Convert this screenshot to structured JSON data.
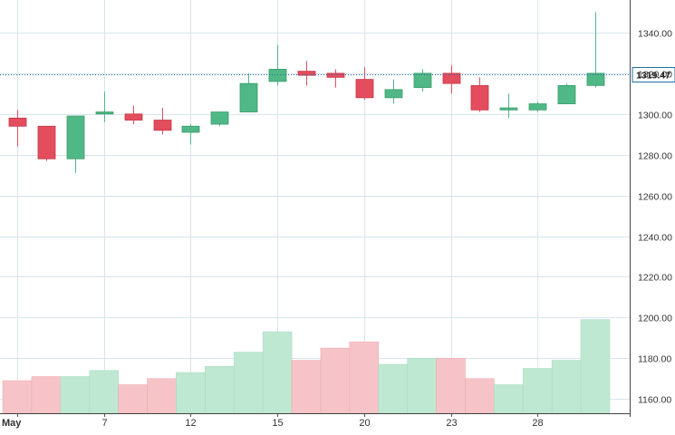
{
  "chart_data": {
    "type": "candlestick",
    "grid": true,
    "price_axis": {
      "position": "right",
      "ticks": [
        "1160.00",
        "1180.00",
        "1200.00",
        "1220.00",
        "1240.00",
        "1260.00",
        "1280.00",
        "1300.00",
        "1320.00",
        "1340.00"
      ],
      "range": [
        1153,
        1356
      ]
    },
    "date_axis": {
      "labels": [
        "May",
        "7",
        "12",
        "15",
        "20",
        "23",
        "28"
      ],
      "label_slots": [
        0,
        3,
        6,
        9,
        12,
        15,
        18
      ]
    },
    "last_price": {
      "value": 1319.47,
      "label": "1319.47",
      "color": "#1e6fa6"
    },
    "colors": {
      "up": "#50b886",
      "down": "#e34d5d",
      "up_volume": "#bfe8d3",
      "down_volume": "#f6c4c8",
      "grid": "#d7e5ec",
      "axis_text": "#333333"
    },
    "volume_scale": [
      1153,
      1356
    ],
    "candles": [
      {
        "open": 1298,
        "high": 1302,
        "low": 1284,
        "close": 1294
      },
      {
        "open": 1294,
        "high": 1294,
        "low": 1277,
        "close": 1278
      },
      {
        "open": 1278,
        "high": 1299,
        "low": 1271,
        "close": 1299
      },
      {
        "open": 1300,
        "high": 1311,
        "low": 1296,
        "close": 1301
      },
      {
        "open": 1300,
        "high": 1304,
        "low": 1295,
        "close": 1297
      },
      {
        "open": 1297,
        "high": 1303,
        "low": 1290,
        "close": 1292
      },
      {
        "open": 1291,
        "high": 1295,
        "low": 1285,
        "close": 1294
      },
      {
        "open": 1295,
        "high": 1301,
        "low": 1294,
        "close": 1301
      },
      {
        "open": 1301,
        "high": 1320,
        "low": 1301,
        "close": 1315
      },
      {
        "open": 1316,
        "high": 1334,
        "low": 1314,
        "close": 1322
      },
      {
        "open": 1321,
        "high": 1326,
        "low": 1314,
        "close": 1319
      },
      {
        "open": 1320,
        "high": 1322,
        "low": 1313,
        "close": 1318
      },
      {
        "open": 1317,
        "high": 1323,
        "low": 1307,
        "close": 1308
      },
      {
        "open": 1308,
        "high": 1317,
        "low": 1305,
        "close": 1312
      },
      {
        "open": 1313,
        "high": 1322,
        "low": 1311,
        "close": 1320
      },
      {
        "open": 1320,
        "high": 1324,
        "low": 1310,
        "close": 1315
      },
      {
        "open": 1314,
        "high": 1318,
        "low": 1301,
        "close": 1302
      },
      {
        "open": 1302,
        "high": 1310,
        "low": 1298,
        "close": 1303
      },
      {
        "open": 1302,
        "high": 1306,
        "low": 1301,
        "close": 1305
      },
      {
        "open": 1305,
        "high": 1315,
        "low": 1305,
        "close": 1314
      },
      {
        "open": 1314,
        "high": 1350,
        "low": 1313,
        "close": 1320
      }
    ],
    "volume": [
      {
        "value": 1169,
        "dir": "down"
      },
      {
        "value": 1171,
        "dir": "down"
      },
      {
        "value": 1171,
        "dir": "up"
      },
      {
        "value": 1174,
        "dir": "up"
      },
      {
        "value": 1167,
        "dir": "down"
      },
      {
        "value": 1170,
        "dir": "down"
      },
      {
        "value": 1173,
        "dir": "up"
      },
      {
        "value": 1176,
        "dir": "up"
      },
      {
        "value": 1183,
        "dir": "up"
      },
      {
        "value": 1193,
        "dir": "up"
      },
      {
        "value": 1179,
        "dir": "down"
      },
      {
        "value": 1185,
        "dir": "down"
      },
      {
        "value": 1188,
        "dir": "down"
      },
      {
        "value": 1177,
        "dir": "up"
      },
      {
        "value": 1180,
        "dir": "up"
      },
      {
        "value": 1180,
        "dir": "down"
      },
      {
        "value": 1170,
        "dir": "down"
      },
      {
        "value": 1167,
        "dir": "up"
      },
      {
        "value": 1175,
        "dir": "up"
      },
      {
        "value": 1179,
        "dir": "up"
      },
      {
        "value": 1199,
        "dir": "up"
      }
    ]
  }
}
